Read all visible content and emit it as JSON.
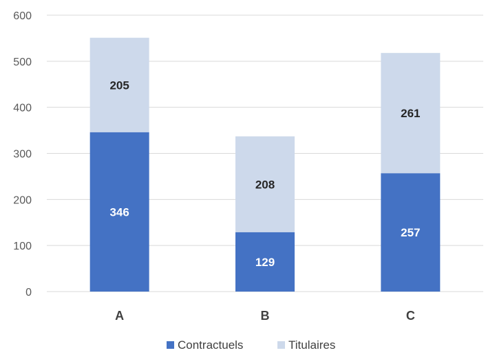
{
  "chart_data": {
    "type": "bar",
    "stacked": true,
    "title": "",
    "xlabel": "",
    "ylabel": "",
    "categories": [
      "A",
      "B",
      "C"
    ],
    "series": [
      {
        "name": "Contractuels",
        "values": [
          346,
          129,
          257
        ],
        "color": "#4472c4",
        "label_color": "#ffffff"
      },
      {
        "name": "Titulaires",
        "values": [
          205,
          208,
          261
        ],
        "color": "#cdd9eb",
        "label_color": "#262626"
      }
    ],
    "ylim": [
      0,
      600
    ],
    "yticks": [
      "0",
      "100",
      "200",
      "300",
      "400",
      "500",
      "600"
    ],
    "grid": true,
    "legend": "bottom-center"
  }
}
